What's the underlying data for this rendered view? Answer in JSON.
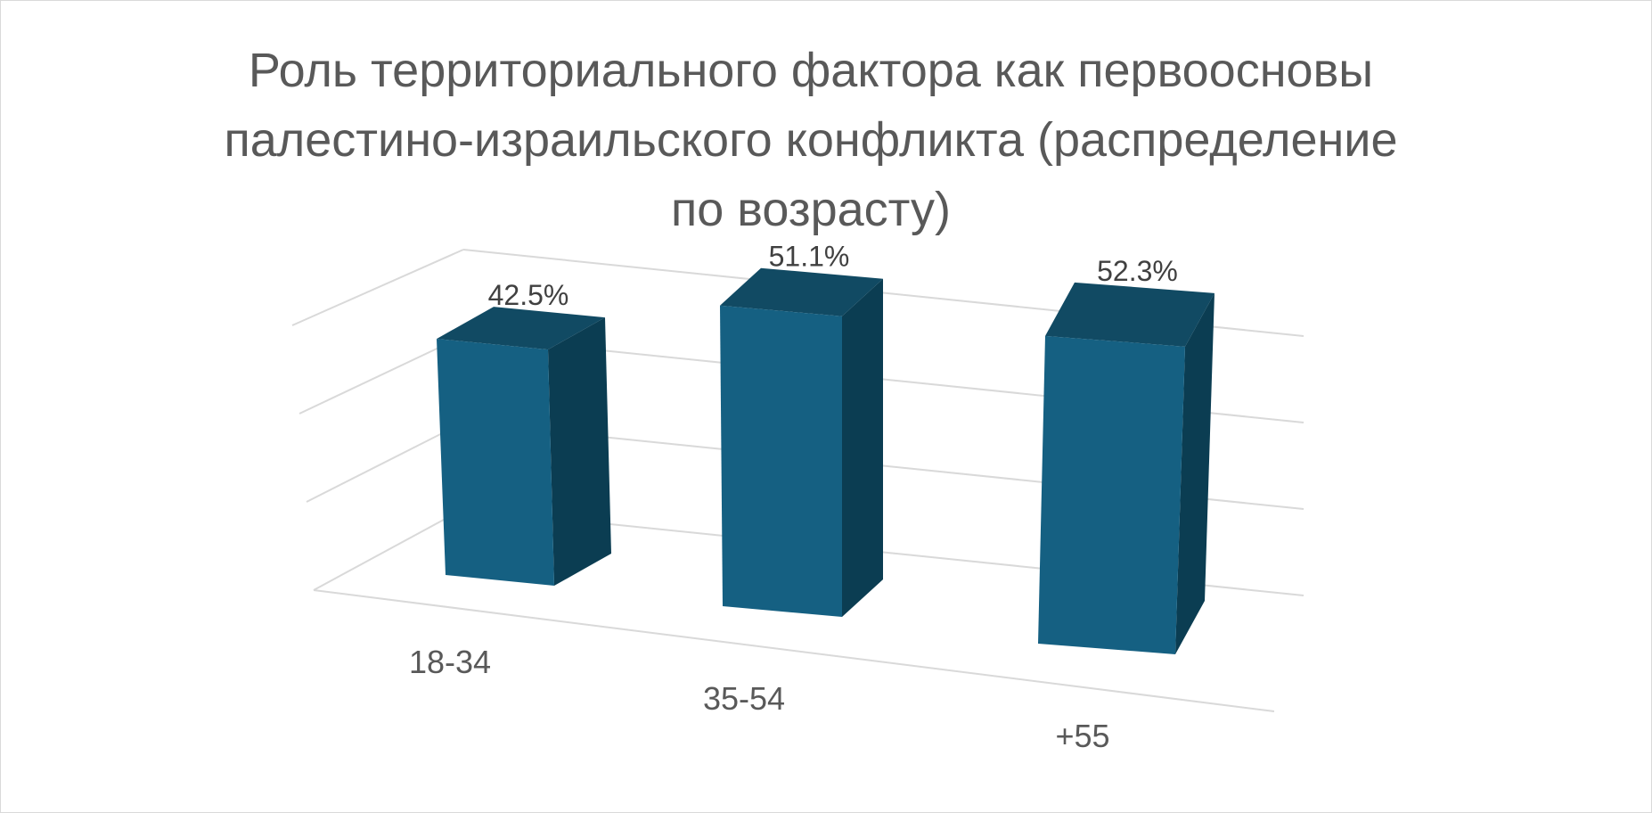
{
  "chart_data": {
    "type": "bar",
    "title_lines": [
      "Роль территориального фактора как первоосновы",
      "палестино-израильского конфликта (распределение",
      "по возрасту)"
    ],
    "categories": [
      "18-34",
      "35-54",
      "+55"
    ],
    "values": [
      42.5,
      51.1,
      52.3
    ],
    "value_labels": [
      "42.5%",
      "51.1%",
      "52.3%"
    ],
    "unit": "%",
    "ylim": [
      0,
      60
    ],
    "grid": true,
    "legend": "none",
    "style": "3d-column",
    "colors": {
      "front": "#156082",
      "side": "#0b3d52",
      "top": "#114a63",
      "grid": "#d9d9d9",
      "text": "#595959"
    }
  }
}
